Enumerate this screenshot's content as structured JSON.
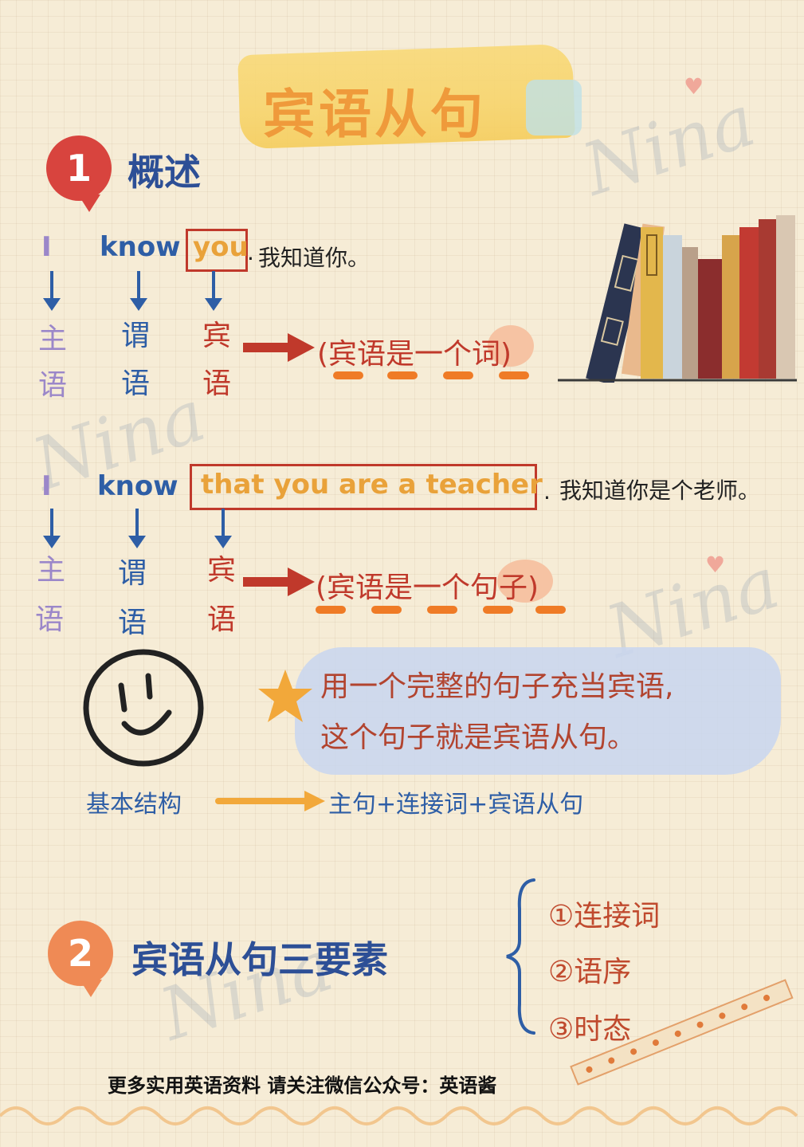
{
  "title": "宾语从句",
  "watermark": "Nina",
  "section1": {
    "number": "1",
    "heading": "概述",
    "example1": {
      "words": [
        "I",
        "know",
        "you"
      ],
      "period": ".",
      "translation": "我知道你。",
      "roles": [
        [
          "主",
          "语"
        ],
        [
          "谓",
          "语"
        ],
        [
          "宾",
          "语"
        ]
      ],
      "note": "(宾语是一个词)"
    },
    "example2": {
      "words": [
        "I",
        "know",
        "that you are a teacher"
      ],
      "period": ".",
      "translation": "我知道你是个老师。",
      "roles": [
        [
          "主",
          "语"
        ],
        [
          "谓",
          "语"
        ],
        [
          "宾",
          "语"
        ]
      ],
      "note": "(宾语是一个句子)"
    },
    "definition": [
      "用一个完整的句子充当宾语,",
      "这个句子就是宾语从句。"
    ],
    "structure": {
      "label": "基本结构",
      "value": "主句+连接词+宾语从句"
    }
  },
  "section2": {
    "number": "2",
    "heading": "宾语从句三要素",
    "elements": [
      "①连接词",
      "②语序",
      "③时态"
    ]
  },
  "footer": "更多实用英语资料 请关注微信公众号：英语酱",
  "icons": [
    "smiley-icon",
    "star-icon",
    "books-illustration",
    "heart-icon",
    "washi-tape"
  ],
  "colors": {
    "accent_red": "#c0392b",
    "accent_blue": "#2e5ea6",
    "accent_orange": "#ef7b26",
    "title_yellow": "#f7d46b"
  }
}
